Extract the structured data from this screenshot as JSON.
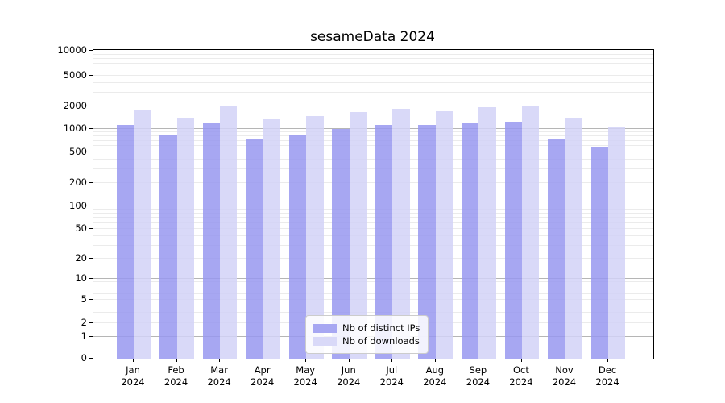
{
  "title": "sesameData 2024",
  "chart_data": {
    "type": "bar",
    "title": "sesameData 2024",
    "categories": [
      "Jan",
      "Feb",
      "Mar",
      "Apr",
      "May",
      "Jun",
      "Jul",
      "Aug",
      "Sep",
      "Oct",
      "Nov",
      "Dec"
    ],
    "category_year": "2024",
    "series": [
      {
        "name": "Nb of distinct IPs",
        "color": "#a7a7f2",
        "fill": "rgba(152,152,240,0.85)",
        "values": [
          1130,
          810,
          1200,
          720,
          830,
          990,
          1120,
          1120,
          1220,
          1240,
          720,
          570
        ]
      },
      {
        "name": "Nb of downloads",
        "color": "#d9d9f8",
        "fill": "rgba(210,210,247,0.85)",
        "values": [
          1760,
          1370,
          2030,
          1330,
          1470,
          1660,
          1850,
          1720,
          1960,
          2010,
          1380,
          1070
        ]
      }
    ],
    "yscale": "symlog",
    "ylim": [
      0,
      10000
    ],
    "yticks": [
      0,
      1,
      2,
      5,
      10,
      20,
      50,
      100,
      200,
      500,
      1000,
      2000,
      5000,
      10000
    ],
    "grid": "both",
    "legend": {
      "position": "bottom-center",
      "entries": [
        "Nb of distinct IPs",
        "Nb of downloads"
      ]
    }
  },
  "colors": {
    "major_grid": "#b5b5b5",
    "minor_grid": "#ebebeb",
    "spine": "#000000",
    "text": "#000000"
  }
}
